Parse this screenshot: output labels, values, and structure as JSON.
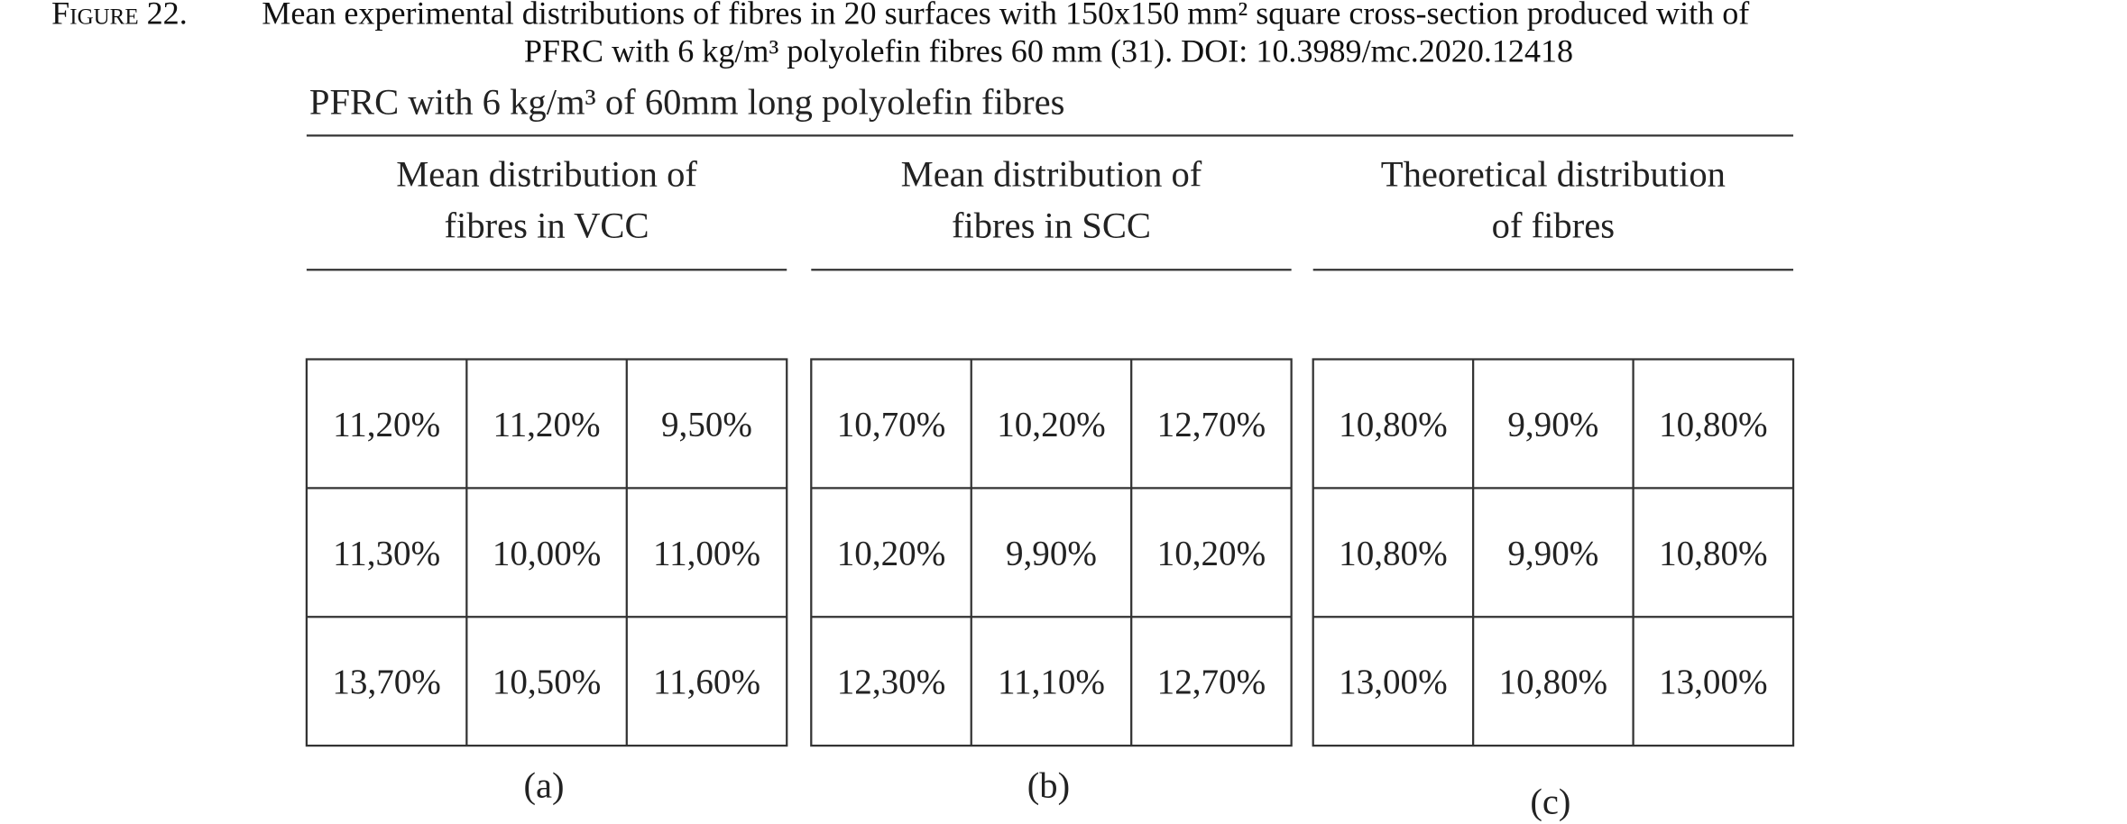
{
  "caption": {
    "label": "Figure 22.",
    "lines": [
      "Mean experimental distributions of fibres in 20 surfaces with 150x150 mm² square cross-section produced with of",
      "PFRC with 6 kg/m³ polyolefin fibres 60 mm (31). DOI: 10.3989/mc.2020.12418"
    ]
  },
  "figure_title": "PFRC with 6 kg/m³ of 60mm long polyolefin fibres",
  "panels": [
    {
      "heading": [
        "Mean distribution of",
        "fibres in VCC"
      ],
      "rows": [
        [
          "11,20%",
          "11,20%",
          "9,50%"
        ],
        [
          "11,30%",
          "10,00%",
          "11,00%"
        ],
        [
          "13,70%",
          "10,50%",
          "11,60%"
        ]
      ],
      "label": "(a)"
    },
    {
      "heading": [
        "Mean distribution of",
        "fibres in SCC"
      ],
      "rows": [
        [
          "10,70%",
          "10,20%",
          "12,70%"
        ],
        [
          "10,20%",
          "9,90%",
          "10,20%"
        ],
        [
          "12,30%",
          "11,10%",
          "12,70%"
        ]
      ],
      "label": "(b)"
    },
    {
      "heading": [
        "Theoretical  distribution",
        "of  fibres"
      ],
      "rows": [
        [
          "10,80%",
          "9,90%",
          "10,80%"
        ],
        [
          "10,80%",
          "9,90%",
          "10,80%"
        ],
        [
          "13,00%",
          "10,80%",
          "13,00%"
        ]
      ],
      "label": "(c)"
    }
  ]
}
